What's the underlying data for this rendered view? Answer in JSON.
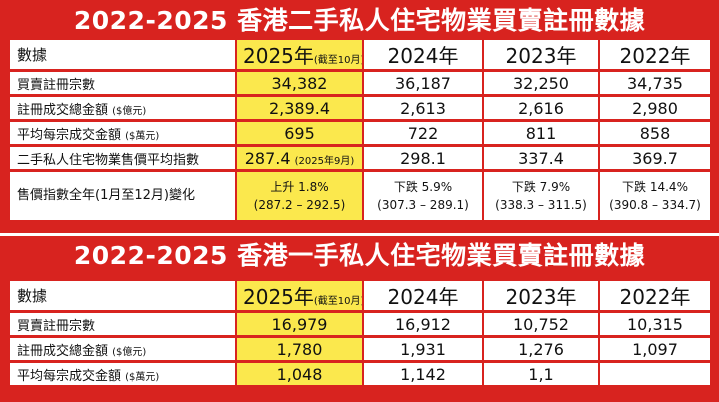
{
  "secondary": {
    "title": "2022-2025 香港二手私人住宅物業買賣註冊數據",
    "header": {
      "label": "數據",
      "col2025": "2025年",
      "col2025_note": "(截至10月)",
      "col2024": "2024年",
      "col2023": "2023年",
      "col2022": "2022年"
    },
    "rows": [
      {
        "label": "買賣註冊宗數",
        "unit": "",
        "v2025": "34,382",
        "v2024": "36,187",
        "v2023": "32,250",
        "v2022": "34,735"
      },
      {
        "label": "註冊成交總金額",
        "unit": "($億元)",
        "v2025": "2,389.4",
        "v2024": "2,613",
        "v2023": "2,616",
        "v2022": "2,980"
      },
      {
        "label": "平均每宗成交金額",
        "unit": "($萬元)",
        "v2025": "695",
        "v2024": "722",
        "v2023": "811",
        "v2022": "858"
      },
      {
        "label": "二手私人住宅物業售價平均指數",
        "unit": "",
        "v2025": "287.4",
        "v2025_note": "(2025年9月)",
        "v2024": "298.1",
        "v2023": "337.4",
        "v2022": "369.7"
      }
    ],
    "change_row": {
      "label": "售價指數全年(1月至12月)變化",
      "c2025_a": "上升 1.8%",
      "c2025_b": "(287.2 – 292.5)",
      "c2024_a": "下跌 5.9%",
      "c2024_b": "(307.3 – 289.1)",
      "c2023_a": "下跌 7.9%",
      "c2023_b": "(338.3 – 311.5)",
      "c2022_a": "下跌 14.4%",
      "c2022_b": "(390.8 – 334.7)"
    }
  },
  "primary": {
    "title": "2022-2025 香港一手私人住宅物業買賣註冊數據",
    "header": {
      "label": "數據",
      "col2025": "2025年",
      "col2025_note": "(截至10月)",
      "col2024": "2024年",
      "col2023": "2023年",
      "col2022": "2022年"
    },
    "rows": [
      {
        "label": "買賣註冊宗數",
        "unit": "",
        "v2025": "16,979",
        "v2024": "16,912",
        "v2023": "10,752",
        "v2022": "10,315"
      },
      {
        "label": "註冊成交總金額",
        "unit": "($億元)",
        "v2025": "1,780",
        "v2024": "1,931",
        "v2023": "1,276",
        "v2022": "1,097"
      },
      {
        "label": "平均每宗成交金額",
        "unit": "($萬元)",
        "v2025": "1,048",
        "v2024": "1,142",
        "v2023": "1,1",
        "v2022": ""
      }
    ]
  },
  "colors": {
    "background": "#d8231f",
    "highlight": "#fbe84d",
    "cell": "#ffffff"
  }
}
